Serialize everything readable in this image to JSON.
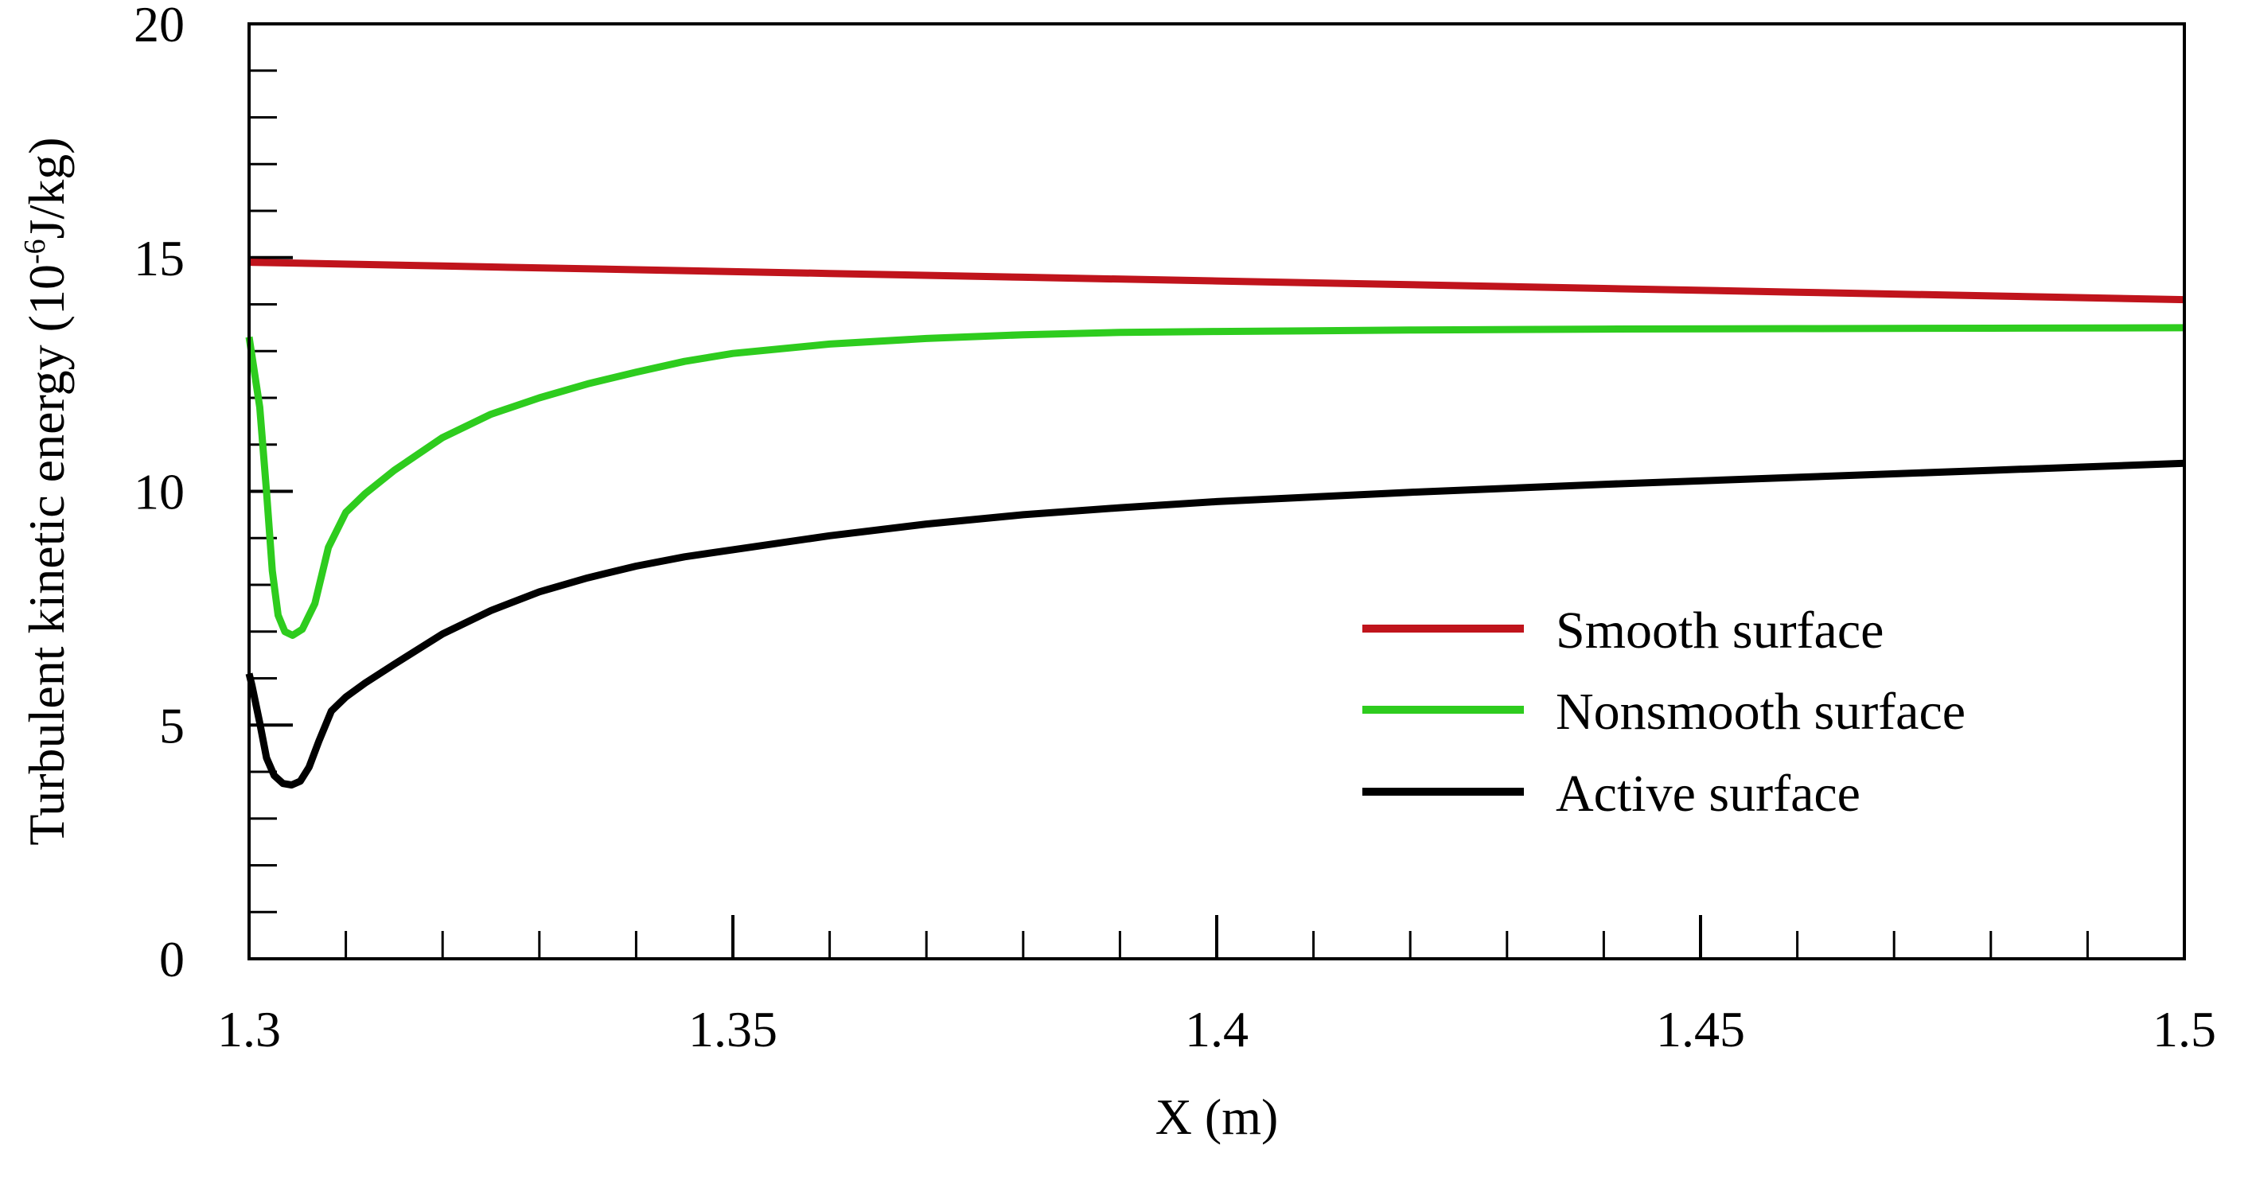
{
  "chart_data": {
    "type": "line",
    "title": "",
    "xlabel": "X (m)",
    "ylabel_parts": {
      "before": "Turbulent kinetic energy (10",
      "exponent": "-6",
      "after": "J/kg)"
    },
    "xlim": [
      1.3,
      1.5
    ],
    "ylim": [
      0,
      20
    ],
    "x_ticks": [
      {
        "value": 1.3,
        "label": "1.3"
      },
      {
        "value": 1.35,
        "label": "1.35"
      },
      {
        "value": 1.4,
        "label": "1.4"
      },
      {
        "value": 1.45,
        "label": "1.45"
      },
      {
        "value": 1.5,
        "label": "1.5"
      }
    ],
    "y_ticks": [
      {
        "value": 0,
        "label": "0"
      },
      {
        "value": 5,
        "label": "5"
      },
      {
        "value": 10,
        "label": "10"
      },
      {
        "value": 15,
        "label": "15"
      },
      {
        "value": 20,
        "label": "20"
      }
    ],
    "x_minor_step": 0.01,
    "y_minor_step": 1,
    "grid": false,
    "legend_position": "right-middle",
    "series": [
      {
        "name": "Smooth surface",
        "color": "#c0141c",
        "x": [
          1.3,
          1.32,
          1.34,
          1.36,
          1.38,
          1.4,
          1.42,
          1.44,
          1.46,
          1.48,
          1.5
        ],
        "y": [
          14.9,
          14.82,
          14.74,
          14.66,
          14.58,
          14.5,
          14.42,
          14.34,
          14.26,
          14.18,
          14.1
        ]
      },
      {
        "name": "Nonsmooth surface",
        "color": "#2ecc1e",
        "x": [
          1.2995,
          1.3003,
          1.3011,
          1.3018,
          1.3024,
          1.303,
          1.3037,
          1.3045,
          1.3055,
          1.3068,
          1.3082,
          1.31,
          1.312,
          1.315,
          1.32,
          1.325,
          1.33,
          1.335,
          1.34,
          1.345,
          1.35,
          1.36,
          1.37,
          1.38,
          1.39,
          1.4,
          1.42,
          1.44,
          1.46,
          1.48,
          1.5
        ],
        "y": [
          13.3,
          12.9,
          11.8,
          10.0,
          8.3,
          7.35,
          7.0,
          6.92,
          7.05,
          7.6,
          8.8,
          9.55,
          9.95,
          10.45,
          11.15,
          11.65,
          12.0,
          12.3,
          12.55,
          12.78,
          12.95,
          13.15,
          13.27,
          13.35,
          13.4,
          13.42,
          13.45,
          13.47,
          13.48,
          13.49,
          13.5
        ]
      },
      {
        "name": "Active surface",
        "color": "#000000",
        "x": [
          1.2995,
          1.3003,
          1.3011,
          1.3018,
          1.3026,
          1.3035,
          1.3044,
          1.3053,
          1.3062,
          1.3072,
          1.3085,
          1.31,
          1.312,
          1.315,
          1.32,
          1.325,
          1.33,
          1.335,
          1.34,
          1.345,
          1.35,
          1.36,
          1.37,
          1.38,
          1.39,
          1.4,
          1.42,
          1.44,
          1.46,
          1.48,
          1.5
        ],
        "y": [
          6.1,
          5.85,
          5.05,
          4.3,
          3.92,
          3.75,
          3.72,
          3.8,
          4.1,
          4.65,
          5.3,
          5.6,
          5.9,
          6.3,
          6.95,
          7.45,
          7.85,
          8.15,
          8.4,
          8.6,
          8.75,
          9.05,
          9.3,
          9.5,
          9.65,
          9.78,
          9.98,
          10.15,
          10.3,
          10.45,
          10.6
        ]
      }
    ]
  }
}
